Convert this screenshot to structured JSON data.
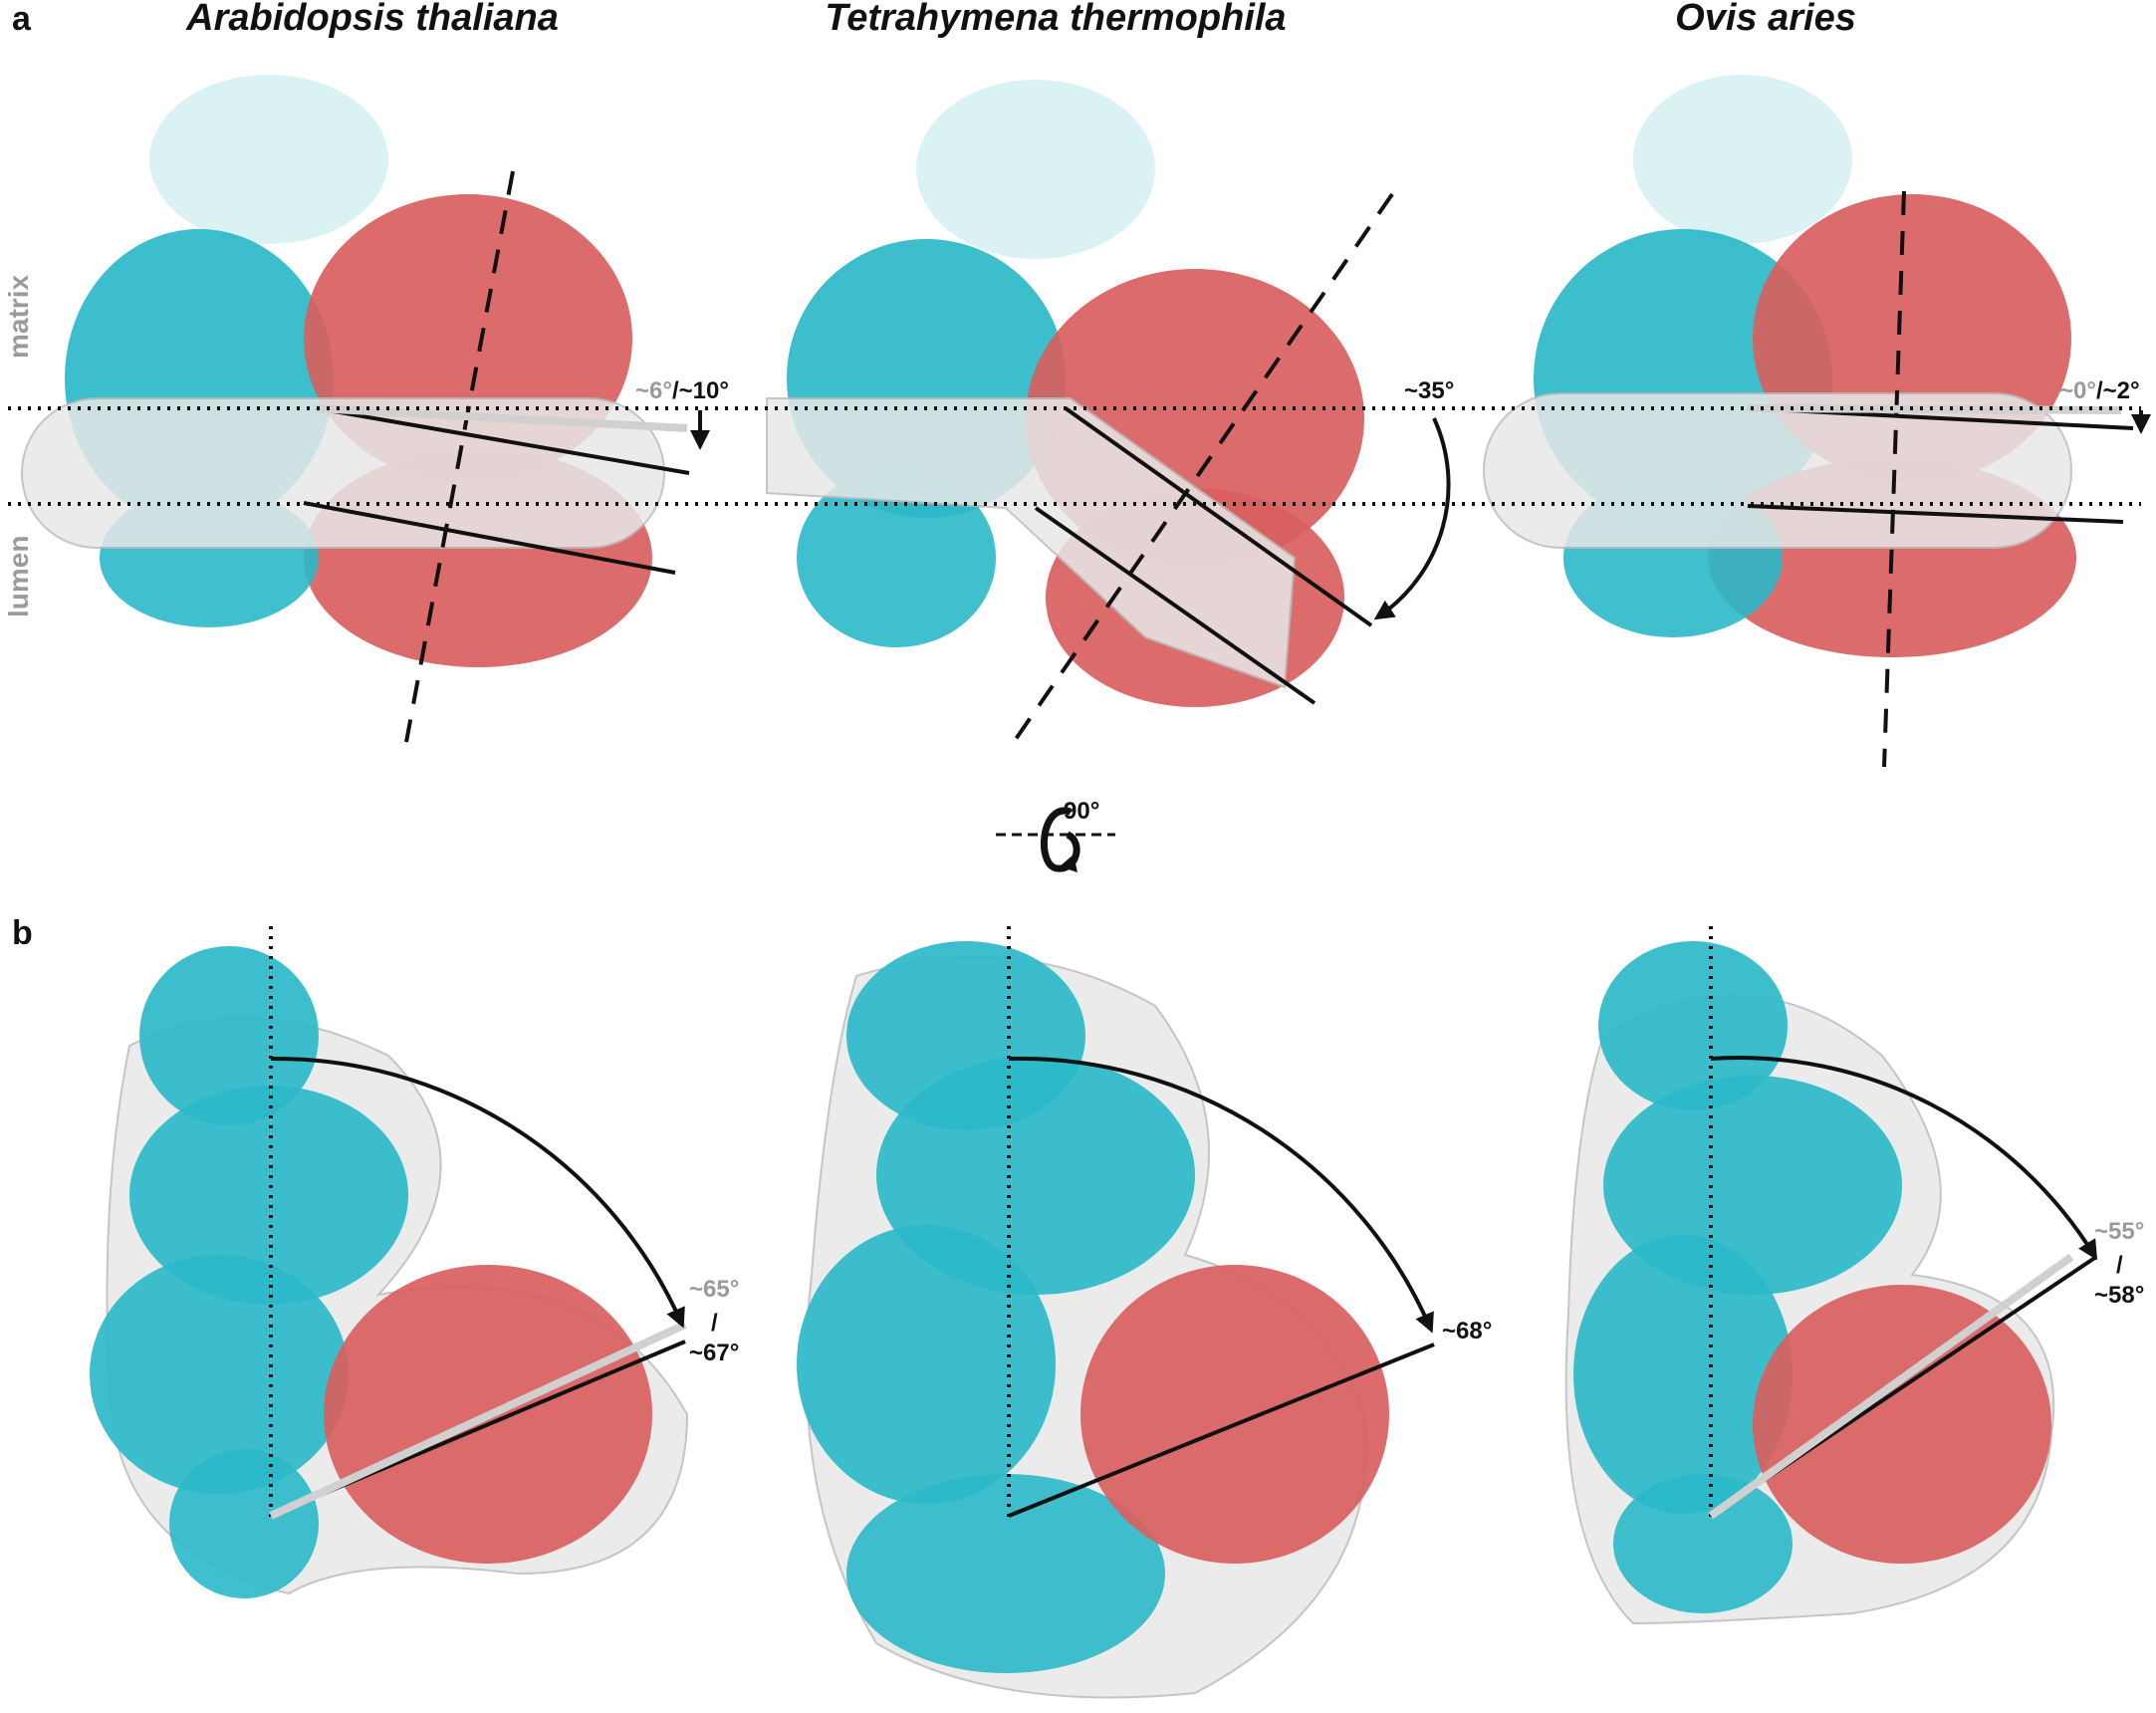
{
  "panel_a": {
    "letter": "a",
    "side_labels": {
      "matrix": "matrix",
      "lumen": "lumen"
    },
    "species": [
      "Arabidopsis thaliana",
      "Tetrahymena thermophila",
      "Ovis aries"
    ],
    "angles": [
      {
        "grey": "~6°",
        "sep": "/",
        "black": "~10°"
      },
      {
        "black": "~35°"
      },
      {
        "grey": "~0°",
        "sep": "/",
        "black": "~2°"
      }
    ]
  },
  "rotation": {
    "label": "90°"
  },
  "panel_b": {
    "letter": "b",
    "angles": [
      {
        "grey": "~65°",
        "sep": "/",
        "black": "~67°"
      },
      {
        "black": "~68°"
      },
      {
        "grey": "~55°",
        "sep": "/",
        "black": "~58°"
      }
    ]
  },
  "colors": {
    "cyan_subunit": "#2bb8c9",
    "red_subunit": "#d9605f",
    "membrane_density": "#e8e8e8",
    "annotation": "#111111",
    "grey_text": "#9a9a9a"
  }
}
